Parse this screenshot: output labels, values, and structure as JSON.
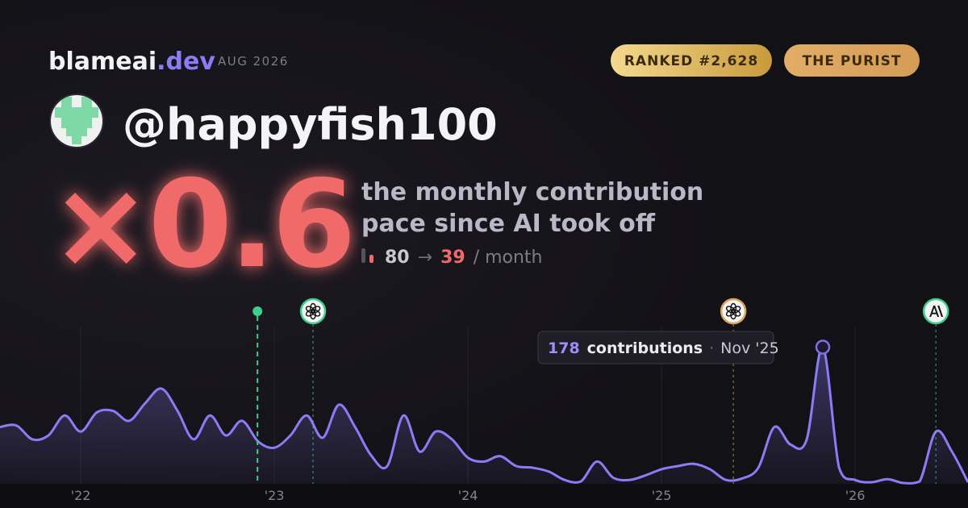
{
  "brand": {
    "name": "blameai",
    "tld": ".dev"
  },
  "period": "AUG 2026",
  "badges": [
    "RANKED #2,628",
    "THE PURIST"
  ],
  "handle": "@happyfish100",
  "multiplier": "×0.6",
  "description": [
    "the monthly contribution",
    "pace since AI took off"
  ],
  "pace": {
    "before": 80,
    "arrow": "→",
    "after": 39,
    "unit": "/ month"
  },
  "chart_data": {
    "type": "area",
    "color": "#8b7cf6",
    "x": [
      2021.583,
      2021.667,
      2021.75,
      2021.833,
      2021.917,
      2022,
      2022.083,
      2022.167,
      2022.25,
      2022.333,
      2022.417,
      2022.5,
      2022.583,
      2022.667,
      2022.75,
      2022.833,
      2022.917,
      2023,
      2023.083,
      2023.167,
      2023.25,
      2023.333,
      2023.417,
      2023.5,
      2023.583,
      2023.667,
      2023.75,
      2023.833,
      2023.917,
      2024,
      2024.083,
      2024.167,
      2024.25,
      2024.333,
      2024.417,
      2024.5,
      2024.583,
      2024.667,
      2024.75,
      2024.833,
      2024.917,
      2025,
      2025.083,
      2025.167,
      2025.25,
      2025.333,
      2025.417,
      2025.5,
      2025.583,
      2025.667,
      2025.75,
      2025.833,
      2025.917,
      2026,
      2026.083,
      2026.167,
      2026.25,
      2026.333,
      2026.417,
      2026.5,
      2026.583
    ],
    "values": [
      74,
      76,
      58,
      63,
      89,
      68,
      93,
      95,
      82,
      105,
      124,
      95,
      58,
      89,
      63,
      82,
      55,
      47,
      63,
      89,
      60,
      103,
      74,
      37,
      23,
      89,
      42,
      68,
      58,
      34,
      29,
      36,
      23,
      21,
      16,
      5,
      3,
      29,
      8,
      5,
      11,
      19,
      23,
      26,
      19,
      5,
      7,
      21,
      74,
      51,
      58,
      178,
      21,
      5,
      2,
      6,
      1,
      3,
      68,
      42,
      2
    ],
    "xlim": [
      2021.583,
      2026.583
    ],
    "ylim": [
      0,
      210
    ],
    "xticks": [
      {
        "value": 2022,
        "label": "'22"
      },
      {
        "value": 2023,
        "label": "'23"
      },
      {
        "value": 2024,
        "label": "'24"
      },
      {
        "value": 2025,
        "label": "'25"
      },
      {
        "value": 2026,
        "label": "'26"
      }
    ],
    "events": [
      {
        "x": 2022.913,
        "color": "#3ecf8e"
      },
      {
        "x": 2023.2,
        "color": "#3ecf8e"
      },
      {
        "x": 2025.371,
        "color": "#d9a460"
      },
      {
        "x": 2026.417,
        "color": "#3ecf8e"
      }
    ],
    "tooltip": {
      "index": 51,
      "label": "contributions",
      "separator": "·",
      "date": "Nov '25"
    }
  }
}
